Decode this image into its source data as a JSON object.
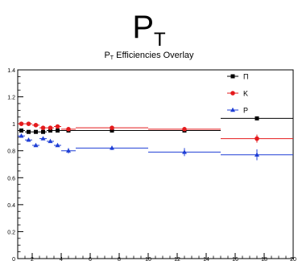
{
  "page": {
    "main_title": "P",
    "main_title_sub": "T",
    "plot_title": "P",
    "plot_title_sub": "T",
    "plot_title_rest": " Efficiencies Overlay"
  },
  "chart_data": {
    "type": "scatter",
    "title": "P_T Efficiencies Overlay",
    "xlabel": "",
    "ylabel": "",
    "xlim": [
      1,
      20
    ],
    "ylim": [
      0,
      1.4
    ],
    "xticks": [
      2,
      4,
      6,
      8,
      10,
      12,
      14,
      16,
      18,
      20
    ],
    "yticks": [
      0,
      0.2,
      0.4,
      0.6,
      0.8,
      1.0,
      1.2,
      1.4
    ],
    "ytick_labels": [
      "0",
      "0.2",
      "0.4",
      "0.6",
      "0.8",
      "1",
      "1.2",
      "1.4"
    ],
    "grid": false,
    "legend_position": "top-right",
    "series": [
      {
        "name": "Π",
        "color": "#000000",
        "marker": "square",
        "points": [
          {
            "x": 1.25,
            "y": 0.95,
            "xerr": 0.25,
            "yerr": 0.01
          },
          {
            "x": 1.75,
            "y": 0.94,
            "xerr": 0.25,
            "yerr": 0.01
          },
          {
            "x": 2.25,
            "y": 0.94,
            "xerr": 0.25,
            "yerr": 0.01
          },
          {
            "x": 2.75,
            "y": 0.94,
            "xerr": 0.25,
            "yerr": 0.01
          },
          {
            "x": 3.25,
            "y": 0.95,
            "xerr": 0.25,
            "yerr": 0.01
          },
          {
            "x": 3.75,
            "y": 0.95,
            "xerr": 0.25,
            "yerr": 0.01
          },
          {
            "x": 4.5,
            "y": 0.95,
            "xerr": 0.5,
            "yerr": 0.012
          },
          {
            "x": 7.5,
            "y": 0.95,
            "xerr": 2.5,
            "yerr": 0.012
          },
          {
            "x": 12.5,
            "y": 0.95,
            "xerr": 2.5,
            "yerr": 0.015
          },
          {
            "x": 17.5,
            "y": 1.04,
            "xerr": 2.5,
            "yerr": 0.01
          }
        ]
      },
      {
        "name": "K",
        "color": "#e41a1c",
        "marker": "circle",
        "points": [
          {
            "x": 1.25,
            "y": 1.0,
            "xerr": 0.25,
            "yerr": 0.01
          },
          {
            "x": 1.75,
            "y": 1.0,
            "xerr": 0.25,
            "yerr": 0.01
          },
          {
            "x": 2.25,
            "y": 0.99,
            "xerr": 0.25,
            "yerr": 0.01
          },
          {
            "x": 2.75,
            "y": 0.97,
            "xerr": 0.25,
            "yerr": 0.01
          },
          {
            "x": 3.25,
            "y": 0.97,
            "xerr": 0.25,
            "yerr": 0.01
          },
          {
            "x": 3.75,
            "y": 0.98,
            "xerr": 0.25,
            "yerr": 0.01
          },
          {
            "x": 4.5,
            "y": 0.96,
            "xerr": 0.5,
            "yerr": 0.012
          },
          {
            "x": 7.5,
            "y": 0.97,
            "xerr": 2.5,
            "yerr": 0.012
          },
          {
            "x": 12.5,
            "y": 0.96,
            "xerr": 2.5,
            "yerr": 0.015
          },
          {
            "x": 17.5,
            "y": 0.89,
            "xerr": 2.5,
            "yerr": 0.03
          }
        ]
      },
      {
        "name": "P",
        "color": "#1f3fd6",
        "marker": "triangle",
        "points": [
          {
            "x": 1.25,
            "y": 0.91,
            "xerr": 0.25,
            "yerr": 0.01
          },
          {
            "x": 1.75,
            "y": 0.88,
            "xerr": 0.25,
            "yerr": 0.01
          },
          {
            "x": 2.25,
            "y": 0.84,
            "xerr": 0.25,
            "yerr": 0.01
          },
          {
            "x": 2.75,
            "y": 0.89,
            "xerr": 0.25,
            "yerr": 0.01
          },
          {
            "x": 3.25,
            "y": 0.87,
            "xerr": 0.25,
            "yerr": 0.01
          },
          {
            "x": 3.75,
            "y": 0.84,
            "xerr": 0.25,
            "yerr": 0.01
          },
          {
            "x": 4.5,
            "y": 0.8,
            "xerr": 0.5,
            "yerr": 0.02
          },
          {
            "x": 7.5,
            "y": 0.82,
            "xerr": 2.5,
            "yerr": 0.015
          },
          {
            "x": 12.5,
            "y": 0.79,
            "xerr": 2.5,
            "yerr": 0.03
          },
          {
            "x": 17.5,
            "y": 0.77,
            "xerr": 2.5,
            "yerr": 0.04
          }
        ]
      }
    ]
  }
}
